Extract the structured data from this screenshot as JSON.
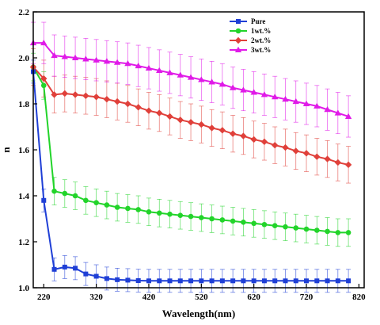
{
  "chart_data": {
    "type": "line",
    "xlabel": "Wavelength(nm)",
    "ylabel": "n",
    "xlim": [
      200,
      830
    ],
    "ylim": [
      1.0,
      2.2
    ],
    "x_ticks": [
      220,
      320,
      420,
      520,
      620,
      720,
      820
    ],
    "y_ticks": [
      1.0,
      1.2,
      1.4,
      1.6,
      1.8,
      2.0,
      2.2
    ],
    "grid": false,
    "legend_position": "top-right",
    "x": [
      200,
      220,
      240,
      260,
      280,
      300,
      320,
      340,
      360,
      380,
      400,
      420,
      440,
      460,
      480,
      500,
      520,
      540,
      560,
      580,
      600,
      620,
      640,
      660,
      680,
      700,
      720,
      740,
      760,
      780,
      800
    ],
    "series": [
      {
        "name": "Pure",
        "color": "#1f3fd6",
        "marker": "square",
        "values": [
          1.94,
          1.38,
          1.08,
          1.09,
          1.085,
          1.06,
          1.05,
          1.04,
          1.035,
          1.033,
          1.031,
          1.03,
          1.03,
          1.03,
          1.03,
          1.03,
          1.03,
          1.03,
          1.03,
          1.03,
          1.03,
          1.03,
          1.03,
          1.03,
          1.03,
          1.03,
          1.03,
          1.03,
          1.03,
          1.03,
          1.03
        ],
        "error": 0.05
      },
      {
        "name": "1wt.%",
        "color": "#22d42a",
        "marker": "circle",
        "values": [
          1.96,
          1.88,
          1.42,
          1.41,
          1.4,
          1.38,
          1.37,
          1.36,
          1.35,
          1.345,
          1.34,
          1.33,
          1.325,
          1.32,
          1.315,
          1.31,
          1.305,
          1.3,
          1.295,
          1.29,
          1.285,
          1.28,
          1.275,
          1.27,
          1.265,
          1.26,
          1.255,
          1.25,
          1.245,
          1.24,
          1.24
        ],
        "error": 0.06
      },
      {
        "name": "2wt.%",
        "color": "#e0403a",
        "marker": "diamond",
        "values": [
          1.96,
          1.91,
          1.84,
          1.845,
          1.84,
          1.835,
          1.83,
          1.82,
          1.81,
          1.8,
          1.785,
          1.77,
          1.76,
          1.745,
          1.73,
          1.72,
          1.71,
          1.695,
          1.685,
          1.67,
          1.66,
          1.645,
          1.635,
          1.62,
          1.61,
          1.595,
          1.585,
          1.57,
          1.56,
          1.545,
          1.535
        ],
        "error": 0.08
      },
      {
        "name": "3wt.%",
        "color": "#e01ae8",
        "marker": "triangle",
        "values": [
          2.065,
          2.065,
          2.01,
          2.005,
          2.0,
          1.995,
          1.99,
          1.985,
          1.98,
          1.975,
          1.965,
          1.955,
          1.945,
          1.935,
          1.925,
          1.915,
          1.905,
          1.895,
          1.885,
          1.87,
          1.86,
          1.85,
          1.84,
          1.83,
          1.82,
          1.81,
          1.8,
          1.79,
          1.775,
          1.76,
          1.745
        ],
        "error": 0.09
      }
    ]
  }
}
